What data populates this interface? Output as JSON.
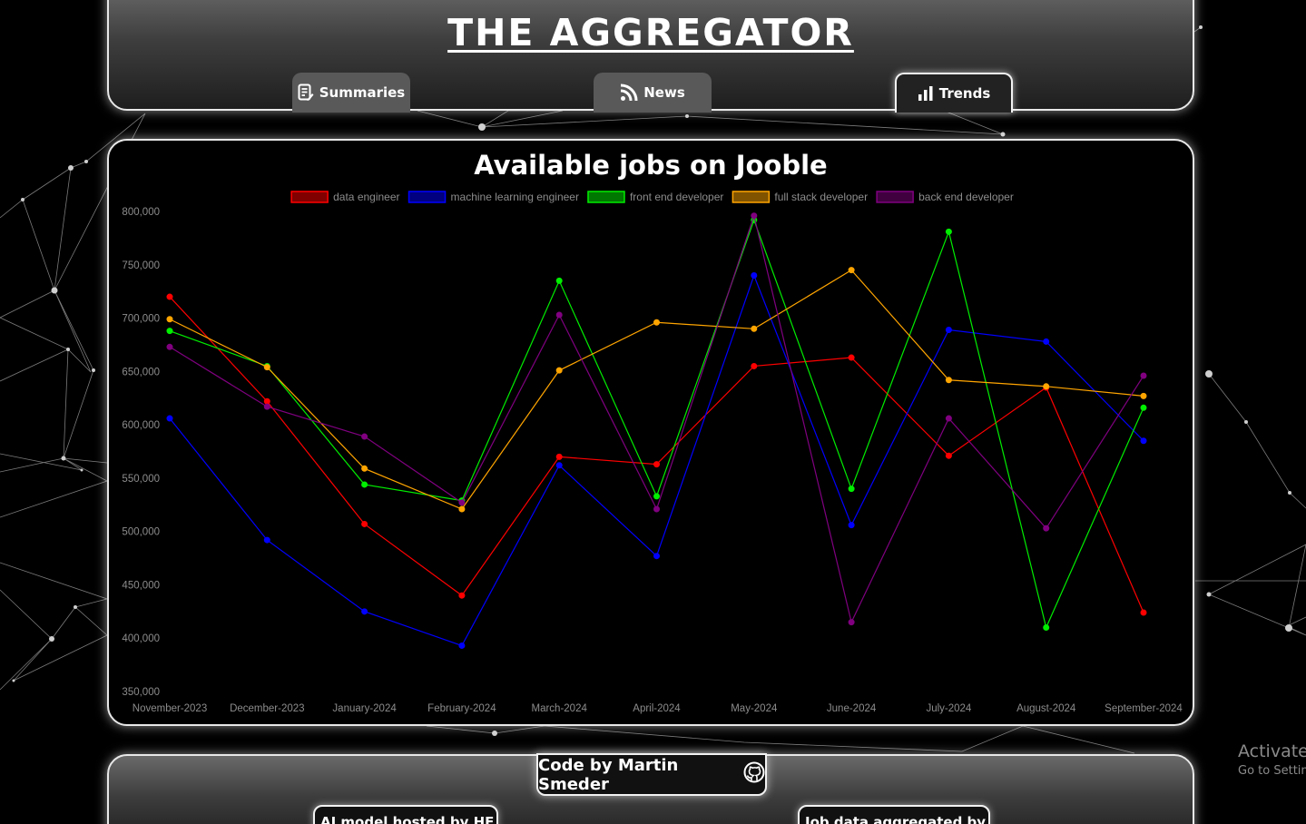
{
  "header": {
    "title": "THE AGGREGATOR",
    "tabs": [
      {
        "label": "Summaries",
        "icon": "summary-icon",
        "active": false
      },
      {
        "label": "News",
        "icon": "rss-icon",
        "active": false
      },
      {
        "label": "Trends",
        "icon": "bar-chart-icon",
        "active": true
      }
    ]
  },
  "chart_data": {
    "type": "line",
    "title": "Available jobs on Jooble",
    "xlabel": "",
    "ylabel": "",
    "categories": [
      "November-2023",
      "December-2023",
      "January-2024",
      "February-2024",
      "March-2024",
      "April-2024",
      "May-2024",
      "June-2024",
      "July-2024",
      "August-2024",
      "September-2024"
    ],
    "ylim": [
      350000,
      800000
    ],
    "yticks": [
      "800,000",
      "750,000",
      "700,000",
      "650,000",
      "600,000",
      "550,000",
      "500,000",
      "450,000",
      "400,000",
      "350,000"
    ],
    "legend_position": "top-center",
    "grid": false,
    "series": [
      {
        "name": "data engineer",
        "color": "#ff0000",
        "values": [
          720000,
          622000,
          507000,
          440000,
          570000,
          563000,
          655000,
          663000,
          571000,
          635000,
          424000
        ]
      },
      {
        "name": "machine learning engineer",
        "color": "#0000ff",
        "values": [
          606000,
          492000,
          425000,
          393000,
          562000,
          477000,
          740000,
          506000,
          689000,
          678000,
          585000
        ]
      },
      {
        "name": "front end developer",
        "color": "#00ee00",
        "values": [
          688000,
          655000,
          544000,
          529000,
          735000,
          533000,
          792000,
          540000,
          781000,
          410000,
          616000
        ]
      },
      {
        "name": "full stack developer",
        "color": "#ffa500",
        "values": [
          699000,
          654000,
          559000,
          521000,
          651000,
          696000,
          690000,
          745000,
          642000,
          636000,
          627000
        ]
      },
      {
        "name": "back end developer",
        "color": "#800080",
        "values": [
          673000,
          617000,
          589000,
          527000,
          703000,
          521000,
          796000,
          415000,
          606000,
          503000,
          646000
        ]
      }
    ]
  },
  "footer": {
    "credit": "Code by Martin Smeder",
    "ai_badge": "AI model hosted by HF",
    "jobs_badge": "Job data aggregated by"
  },
  "overlay": {
    "activate_title": "Activate Windows",
    "activate_sub": "Go to Settings to activate Windows."
  },
  "colors": {
    "page_background": "#000000",
    "panel_border": "#e8e8e8",
    "axis_text": "#8c8c8c"
  }
}
